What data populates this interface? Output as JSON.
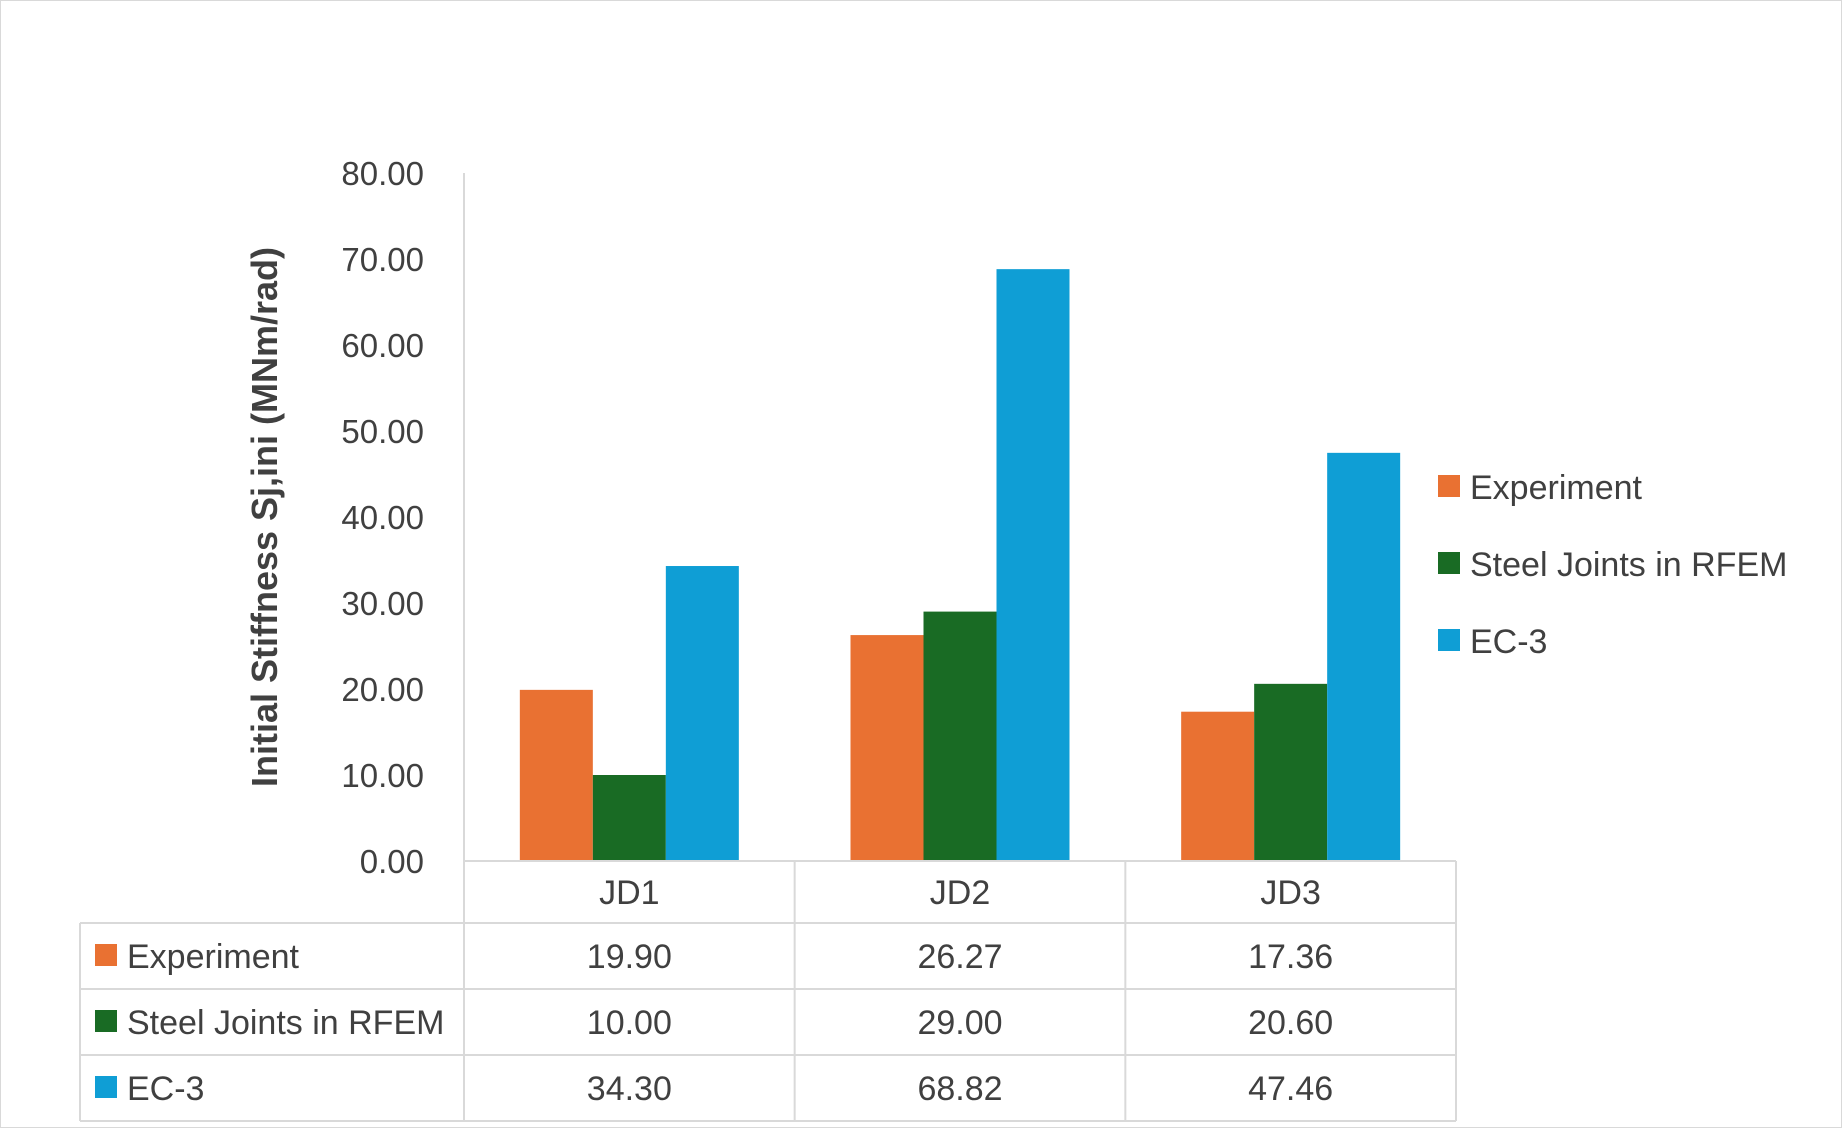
{
  "chart_data": {
    "type": "bar",
    "title": "",
    "xlabel": "",
    "ylabel": "Initial Stiffness Sj,ini (MNm/rad)",
    "categories": [
      "JD1",
      "JD2",
      "JD3"
    ],
    "series": [
      {
        "name": "Experiment",
        "values": [
          19.9,
          26.27,
          17.36
        ],
        "color": "#E97132"
      },
      {
        "name": "Steel Joints in RFEM",
        "values": [
          10.0,
          29.0,
          20.6
        ],
        "color": "#196B24"
      },
      {
        "name": "EC-3",
        "values": [
          34.3,
          68.82,
          47.46
        ],
        "color": "#0F9ED5"
      }
    ],
    "ylim": [
      0,
      80
    ],
    "ytick_step": 10,
    "ytick_labels": [
      "0.00",
      "10.00",
      "20.00",
      "30.00",
      "40.00",
      "50.00",
      "60.00",
      "70.00",
      "80.00"
    ],
    "legend_position": "right",
    "grid": false,
    "data_table": {
      "rows": [
        {
          "label": "Experiment",
          "cells": [
            "19.90",
            "26.27",
            "17.36"
          ]
        },
        {
          "label": "Steel Joints in RFEM",
          "cells": [
            "10.00",
            "29.00",
            "20.60"
          ]
        },
        {
          "label": "EC-3",
          "cells": [
            "34.30",
            "68.82",
            "47.46"
          ]
        }
      ]
    }
  }
}
